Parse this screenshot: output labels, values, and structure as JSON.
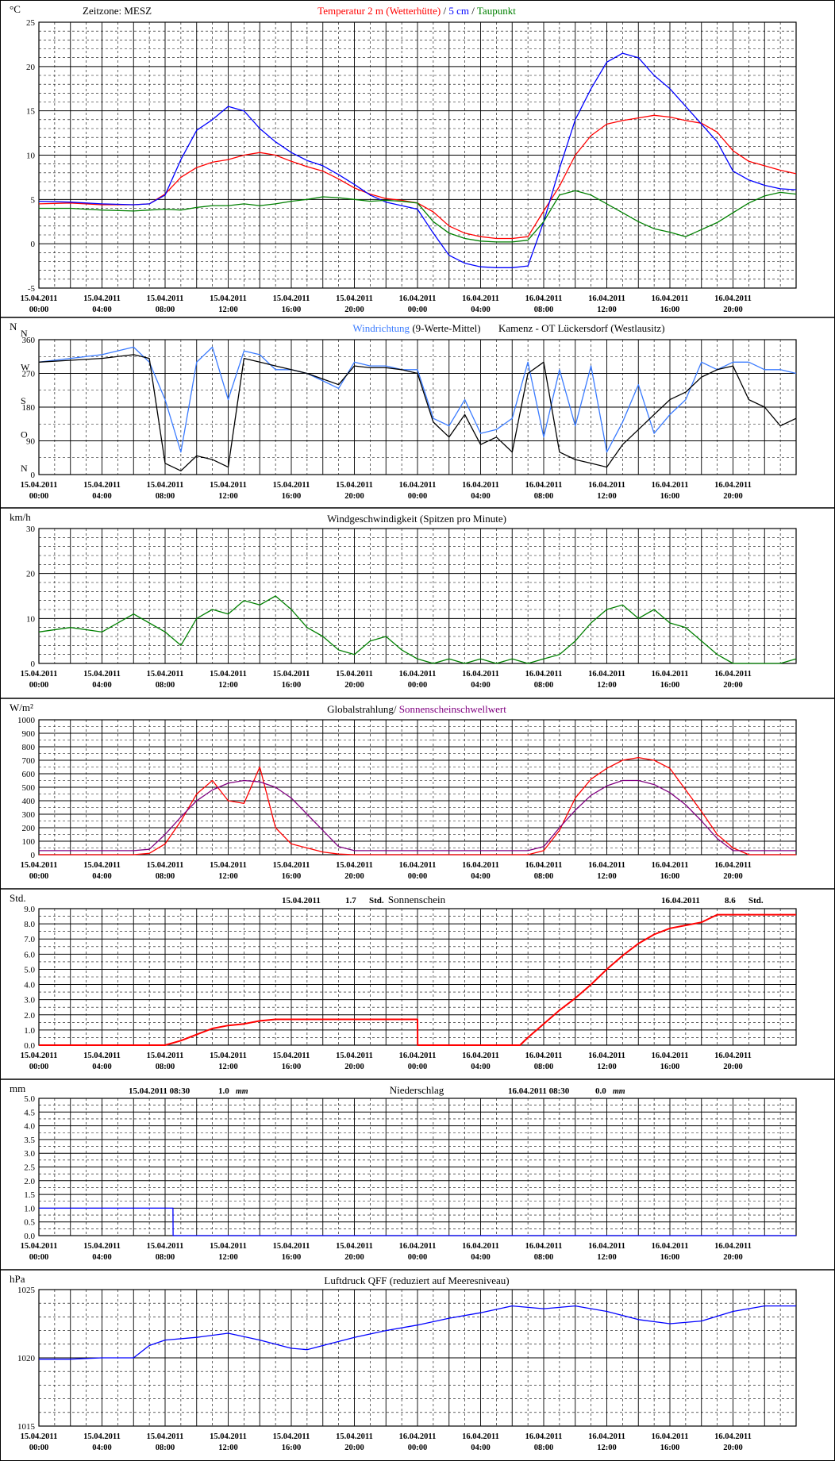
{
  "timezone_label": "Zeitzone: MESZ",
  "x_tick_labels": [
    {
      "date": "15.04.2011",
      "time": "00:00"
    },
    {
      "date": "15.04.2011",
      "time": "04:00"
    },
    {
      "date": "15.04.2011",
      "time": "08:00"
    },
    {
      "date": "15.04.2011",
      "time": "12:00"
    },
    {
      "date": "15.04.2011",
      "time": "16:00"
    },
    {
      "date": "15.04.2011",
      "time": "20:00"
    },
    {
      "date": "16.04.2011",
      "time": "00:00"
    },
    {
      "date": "16.04.2011",
      "time": "04:00"
    },
    {
      "date": "16.04.2011",
      "time": "08:00"
    },
    {
      "date": "16.04.2011",
      "time": "12:00"
    },
    {
      "date": "16.04.2011",
      "time": "16:00"
    },
    {
      "date": "16.04.2011",
      "time": "20:00"
    }
  ],
  "colors": {
    "temperature": "#ff0000",
    "soil_5cm": "#0000ff",
    "dewpoint": "#008000",
    "wind_dir_avg": "#3a7bff",
    "wind_dir_raw": "#000000",
    "wind_speed": "#008000",
    "radiation": "#ff0000",
    "sun_threshold": "#800080",
    "sunshine": "#ff0000",
    "precip": "#0000ff",
    "pressure": "#0000ff"
  },
  "chart_data": [
    {
      "id": "temperature",
      "type": "line",
      "unit_label": "°C",
      "ylim": [
        -5,
        25
      ],
      "yticks": [
        "-5",
        "0",
        "5",
        "10",
        "15",
        "20",
        "25"
      ],
      "title_parts": [
        {
          "text": "Temperatur 2 m (Wetterhütte)",
          "color": "#ff0000"
        },
        {
          "text": " / ",
          "color": "#000000"
        },
        {
          "text": "5 cm",
          "color": "#0000ff"
        },
        {
          "text": " / ",
          "color": "#000000"
        },
        {
          "text": "Taupunkt",
          "color": "#008000"
        }
      ],
      "x_hours": [
        0,
        2,
        4,
        6,
        7,
        8,
        9,
        10,
        11,
        12,
        13,
        14,
        15,
        16,
        17,
        18,
        19,
        20,
        21,
        22,
        23,
        24,
        25,
        26,
        27,
        28,
        29,
        30,
        31,
        32,
        33,
        34,
        35,
        36,
        37,
        38,
        39,
        40,
        41,
        42,
        43,
        44,
        45,
        46,
        47,
        48
      ],
      "series": [
        {
          "name": "Temperatur 2 m (Wetterhütte)",
          "color": "#ff0000",
          "values": [
            4.5,
            4.6,
            4.4,
            4.4,
            4.5,
            5.6,
            7.5,
            8.6,
            9.2,
            9.5,
            10.0,
            10.3,
            10.0,
            9.3,
            8.7,
            8.2,
            7.3,
            6.3,
            5.6,
            5.1,
            4.9,
            4.6,
            3.6,
            2.0,
            1.2,
            0.8,
            0.6,
            0.6,
            0.8,
            3.7,
            6.5,
            10.0,
            12.2,
            13.5,
            13.9,
            14.2,
            14.5,
            14.3,
            13.9,
            13.6,
            12.6,
            10.5,
            9.3,
            8.8,
            8.3,
            7.9
          ]
        },
        {
          "name": "5 cm",
          "color": "#0000ff",
          "values": [
            4.8,
            4.7,
            4.5,
            4.4,
            4.5,
            5.5,
            9.5,
            12.8,
            14.0,
            15.5,
            15.0,
            13.0,
            11.5,
            10.3,
            9.4,
            8.8,
            7.8,
            6.7,
            5.5,
            4.7,
            4.3,
            3.9,
            1.2,
            -1.3,
            -2.2,
            -2.6,
            -2.7,
            -2.7,
            -2.5,
            2.5,
            8.5,
            14.0,
            17.5,
            20.5,
            21.5,
            21.0,
            19.0,
            17.5,
            15.5,
            13.5,
            11.5,
            8.2,
            7.2,
            6.6,
            6.2,
            6.1
          ]
        },
        {
          "name": "Taupunkt",
          "color": "#008000",
          "values": [
            4.0,
            4.0,
            3.8,
            3.7,
            3.8,
            3.9,
            3.8,
            4.1,
            4.3,
            4.3,
            4.5,
            4.3,
            4.5,
            4.8,
            5.0,
            5.3,
            5.2,
            5.0,
            4.8,
            4.9,
            4.8,
            4.6,
            2.5,
            1.2,
            0.6,
            0.3,
            0.2,
            0.2,
            0.4,
            2.5,
            5.5,
            6.0,
            5.5,
            4.5,
            3.5,
            2.5,
            1.7,
            1.3,
            0.8,
            1.6,
            2.4,
            3.5,
            4.6,
            5.4,
            5.8,
            5.6
          ]
        }
      ]
    },
    {
      "id": "wind_direction",
      "type": "line",
      "ylim": [
        0,
        360
      ],
      "yticks": [
        "0",
        "90",
        "180",
        "270",
        "360"
      ],
      "compass_labels": [
        "N",
        "O",
        "S",
        "W",
        "N"
      ],
      "unit_label": "N",
      "title_parts": [
        {
          "text": "Windrichtung",
          "color": "#3a7bff"
        },
        {
          "text": " (9-Werte-Mittel)",
          "color": "#000000"
        }
      ],
      "station_label": "Kamenz - OT Lückersdorf (Westlausitz)",
      "x_hours": [
        0,
        2,
        4,
        6,
        7,
        8,
        9,
        10,
        11,
        12,
        13,
        14,
        15,
        16,
        17,
        18,
        19,
        20,
        21,
        22,
        23,
        24,
        25,
        26,
        27,
        28,
        29,
        30,
        31,
        32,
        33,
        34,
        35,
        36,
        37,
        38,
        39,
        40,
        41,
        42,
        43,
        44,
        45,
        46,
        47,
        48
      ],
      "series": [
        {
          "name": "Windrichtung",
          "color": "#3a7bff",
          "values": [
            300,
            310,
            320,
            340,
            300,
            200,
            60,
            300,
            340,
            200,
            330,
            320,
            280,
            280,
            270,
            250,
            230,
            300,
            290,
            290,
            280,
            280,
            150,
            130,
            200,
            110,
            120,
            150,
            300,
            100,
            280,
            130,
            290,
            60,
            140,
            240,
            110,
            160,
            200,
            300,
            280,
            300,
            300,
            280,
            280,
            270
          ]
        },
        {
          "name": "",
          "color": "#000000",
          "values": [
            300,
            305,
            310,
            320,
            310,
            30,
            10,
            50,
            40,
            20,
            310,
            300,
            290,
            280,
            270,
            255,
            240,
            290,
            285,
            285,
            280,
            270,
            140,
            100,
            160,
            80,
            100,
            60,
            270,
            300,
            60,
            40,
            30,
            20,
            80,
            120,
            160,
            200,
            220,
            260,
            280,
            290,
            200,
            180,
            130,
            150
          ]
        }
      ]
    },
    {
      "id": "wind_speed",
      "type": "line",
      "unit_label": "km/h",
      "title": "Windgeschwindigkeit (Spitzen pro Minute)",
      "ylim": [
        0,
        30
      ],
      "yticks": [
        "0",
        "10",
        "20",
        "30"
      ],
      "x_hours": [
        0,
        2,
        4,
        6,
        7,
        8,
        9,
        10,
        11,
        12,
        13,
        14,
        15,
        16,
        17,
        18,
        19,
        20,
        21,
        22,
        23,
        24,
        25,
        26,
        27,
        28,
        29,
        30,
        31,
        32,
        33,
        34,
        35,
        36,
        37,
        38,
        39,
        40,
        41,
        42,
        43,
        44,
        45,
        46,
        47,
        48
      ],
      "series": [
        {
          "name": "",
          "color": "#008000",
          "values": [
            7,
            8,
            7,
            11,
            9,
            7,
            4,
            10,
            12,
            11,
            14,
            13,
            15,
            12,
            8,
            6,
            3,
            2,
            5,
            6,
            3,
            1,
            0,
            1,
            0,
            1,
            0,
            1,
            0,
            1,
            2,
            5,
            9,
            12,
            13,
            10,
            12,
            9,
            8,
            5,
            2,
            0,
            0,
            0,
            0,
            1
          ]
        }
      ]
    },
    {
      "id": "radiation",
      "type": "line",
      "unit_label": "W/m²",
      "title_parts": [
        {
          "text": "Globalstrahlung/ ",
          "color": "#000000"
        },
        {
          "text": "Sonnenscheinschwellwert",
          "color": "#800080"
        }
      ],
      "ylim": [
        0,
        1000
      ],
      "yticks": [
        "0",
        "100",
        "200",
        "300",
        "400",
        "500",
        "600",
        "700",
        "800",
        "900",
        "1000"
      ],
      "x_hours": [
        0,
        2,
        4,
        6,
        7,
        8,
        9,
        10,
        11,
        12,
        13,
        14,
        15,
        16,
        17,
        18,
        19,
        20,
        21,
        22,
        23,
        24,
        25,
        26,
        27,
        28,
        29,
        30,
        31,
        32,
        33,
        34,
        35,
        36,
        37,
        38,
        39,
        40,
        41,
        42,
        43,
        44,
        45,
        46,
        47,
        48
      ],
      "series": [
        {
          "name": "Globalstrahlung",
          "color": "#ff0000",
          "values": [
            0,
            0,
            0,
            0,
            10,
            80,
            250,
            450,
            550,
            400,
            380,
            650,
            200,
            80,
            50,
            20,
            5,
            0,
            0,
            0,
            0,
            0,
            0,
            0,
            0,
            0,
            0,
            0,
            0,
            30,
            180,
            420,
            560,
            640,
            700,
            720,
            700,
            640,
            480,
            320,
            150,
            50,
            0,
            0,
            0,
            0
          ]
        },
        {
          "name": "Sonnenscheinschwellwert",
          "color": "#800080",
          "values": [
            30,
            30,
            30,
            30,
            40,
            150,
            280,
            400,
            480,
            530,
            550,
            540,
            500,
            420,
            300,
            180,
            60,
            30,
            30,
            30,
            30,
            30,
            30,
            30,
            30,
            30,
            30,
            30,
            30,
            60,
            200,
            330,
            440,
            510,
            550,
            550,
            520,
            460,
            370,
            250,
            120,
            30,
            30,
            30,
            30,
            30
          ]
        }
      ]
    },
    {
      "id": "sunshine",
      "type": "line",
      "unit_label": "Std.",
      "title": "Sonnenschein",
      "day1_label": {
        "date": "15.04.2011",
        "value": "1.7",
        "unit": "Std."
      },
      "day2_label": {
        "date": "16.04.2011",
        "value": "8.6",
        "unit": "Std."
      },
      "ylim": [
        0,
        9
      ],
      "yticks": [
        "0.0",
        "1.0",
        "2.0",
        "3.0",
        "4.0",
        "5.0",
        "6.0",
        "7.0",
        "8.0",
        "9.0"
      ],
      "x_hours": [
        0,
        8,
        9,
        10,
        11,
        12,
        13,
        14,
        15,
        24.0,
        24.01,
        30.5,
        31,
        32,
        33,
        34,
        35,
        36,
        37,
        38,
        39,
        40,
        41,
        42,
        43,
        48
      ],
      "series": [
        {
          "name": "Sonnenschein",
          "color": "#ff0000",
          "values": [
            0,
            0,
            0.3,
            0.7,
            1.1,
            1.3,
            1.4,
            1.6,
            1.7,
            1.7,
            0,
            0,
            0.5,
            1.4,
            2.3,
            3.1,
            4.0,
            5.0,
            5.9,
            6.7,
            7.3,
            7.7,
            7.9,
            8.1,
            8.6,
            8.6
          ]
        }
      ]
    },
    {
      "id": "precipitation",
      "type": "line",
      "unit_label": "mm",
      "title": "Niederschlag",
      "day1_label": {
        "datetime": "15.04.2011 08:30",
        "value": "1.0",
        "unit": "mm"
      },
      "day2_label": {
        "datetime": "16.04.2011 08:30",
        "value": "0.0",
        "unit": "mm"
      },
      "ylim": [
        0,
        5
      ],
      "yticks": [
        "0.0",
        "0.5",
        "1.0",
        "1.5",
        "2.0",
        "2.5",
        "3.0",
        "3.5",
        "4.0",
        "4.5",
        "5.0"
      ],
      "x_hours": [
        0,
        8.5,
        8.51,
        48
      ],
      "series": [
        {
          "name": "Niederschlag",
          "color": "#0000ff",
          "values": [
            1.0,
            1.0,
            0.0,
            0.0
          ]
        }
      ]
    },
    {
      "id": "pressure",
      "type": "line",
      "unit_label": "hPa",
      "title": "Luftdruck QFF (reduziert auf Meeresniveau)",
      "ylim": [
        1015,
        1025
      ],
      "yticks": [
        "1015",
        "1020",
        "1025"
      ],
      "x_hours": [
        0,
        2,
        4,
        6,
        7,
        8,
        10,
        12,
        14,
        16,
        17,
        18,
        20,
        22,
        24,
        26,
        28,
        30,
        32,
        34,
        36,
        38,
        40,
        42,
        44,
        46,
        48
      ],
      "series": [
        {
          "name": "",
          "color": "#0000ff",
          "values": [
            1019.9,
            1019.9,
            1020.0,
            1020.0,
            1020.9,
            1021.3,
            1021.5,
            1021.8,
            1021.3,
            1020.7,
            1020.6,
            1020.9,
            1021.5,
            1022.0,
            1022.4,
            1022.9,
            1023.3,
            1023.8,
            1023.6,
            1023.8,
            1023.4,
            1022.8,
            1022.5,
            1022.7,
            1023.4,
            1023.8,
            1023.8
          ]
        }
      ]
    }
  ]
}
